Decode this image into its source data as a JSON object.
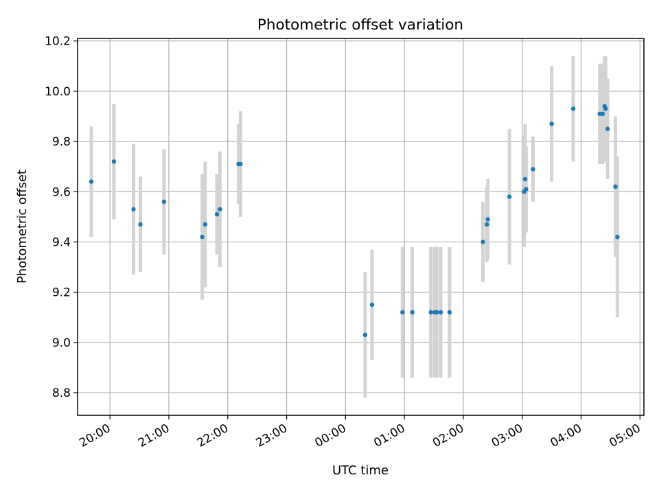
{
  "chart_data": {
    "type": "scatter",
    "title": "Photometric offset variation",
    "xlabel": "UTC time",
    "ylabel": "Photometric offset",
    "xlim": [
      "19:27",
      "05:04"
    ],
    "ylim": [
      8.71,
      10.21
    ],
    "x_ticks": [
      "20:00",
      "21:00",
      "22:00",
      "23:00",
      "00:00",
      "01:00",
      "02:00",
      "03:00",
      "04:00",
      "05:00"
    ],
    "y_ticks": [
      8.8,
      9.0,
      9.2,
      9.4,
      9.6,
      9.8,
      10.0,
      10.2
    ],
    "y_tick_labels": [
      "8.8",
      "9.0",
      "9.2",
      "9.4",
      "9.6",
      "9.8",
      "10.0",
      "10.2"
    ],
    "grid": true,
    "colors": {
      "points": "#1f77b4",
      "errorbars": "#d3d3d3",
      "grid": "#b0b0b0"
    },
    "series": [
      {
        "points": [
          {
            "x": "19:41",
            "y": 9.64,
            "err": 0.22
          },
          {
            "x": "20:04",
            "y": 9.72,
            "err": 0.23
          },
          {
            "x": "20:24",
            "y": 9.53,
            "err": 0.26
          },
          {
            "x": "20:31",
            "y": 9.47,
            "err": 0.19
          },
          {
            "x": "20:55",
            "y": 9.56,
            "err": 0.21
          },
          {
            "x": "21:34",
            "y": 9.42,
            "err": 0.25
          },
          {
            "x": "21:37",
            "y": 9.47,
            "err": 0.25
          },
          {
            "x": "21:49",
            "y": 9.51,
            "err": 0.16
          },
          {
            "x": "21:52",
            "y": 9.53,
            "err": 0.23
          },
          {
            "x": "22:11",
            "y": 9.71,
            "err": 0.16
          },
          {
            "x": "22:13",
            "y": 9.71,
            "err": 0.21
          },
          {
            "x": "00:20",
            "y": 9.03,
            "err": 0.25
          },
          {
            "x": "00:27",
            "y": 9.15,
            "err": 0.22
          },
          {
            "x": "00:58",
            "y": 9.12,
            "err": 0.26
          },
          {
            "x": "01:08",
            "y": 9.12,
            "err": 0.26
          },
          {
            "x": "01:27",
            "y": 9.12,
            "err": 0.26
          },
          {
            "x": "01:31",
            "y": 9.12,
            "err": 0.26
          },
          {
            "x": "01:33",
            "y": 9.12,
            "err": 0.26
          },
          {
            "x": "01:37",
            "y": 9.12,
            "err": 0.26
          },
          {
            "x": "01:46",
            "y": 9.12,
            "err": 0.26
          },
          {
            "x": "02:20",
            "y": 9.4,
            "err": 0.16
          },
          {
            "x": "02:24",
            "y": 9.47,
            "err": 0.15
          },
          {
            "x": "02:25",
            "y": 9.49,
            "err": 0.16
          },
          {
            "x": "02:47",
            "y": 9.58,
            "err": 0.27
          },
          {
            "x": "03:02",
            "y": 9.6,
            "err": 0.22
          },
          {
            "x": "03:03",
            "y": 9.65,
            "err": 0.22
          },
          {
            "x": "03:04",
            "y": 9.61,
            "err": 0.17
          },
          {
            "x": "03:11",
            "y": 9.69,
            "err": 0.13
          },
          {
            "x": "03:30",
            "y": 9.87,
            "err": 0.23
          },
          {
            "x": "03:52",
            "y": 9.93,
            "err": 0.21
          },
          {
            "x": "04:19",
            "y": 9.91,
            "err": 0.2
          },
          {
            "x": "04:22",
            "y": 9.91,
            "err": 0.2
          },
          {
            "x": "04:24",
            "y": 9.94,
            "err": 0.2
          },
          {
            "x": "04:25",
            "y": 9.93,
            "err": 0.21
          },
          {
            "x": "04:27",
            "y": 9.85,
            "err": 0.2
          },
          {
            "x": "04:35",
            "y": 9.62,
            "err": 0.28
          },
          {
            "x": "04:37",
            "y": 9.42,
            "err": 0.32
          }
        ]
      }
    ]
  }
}
